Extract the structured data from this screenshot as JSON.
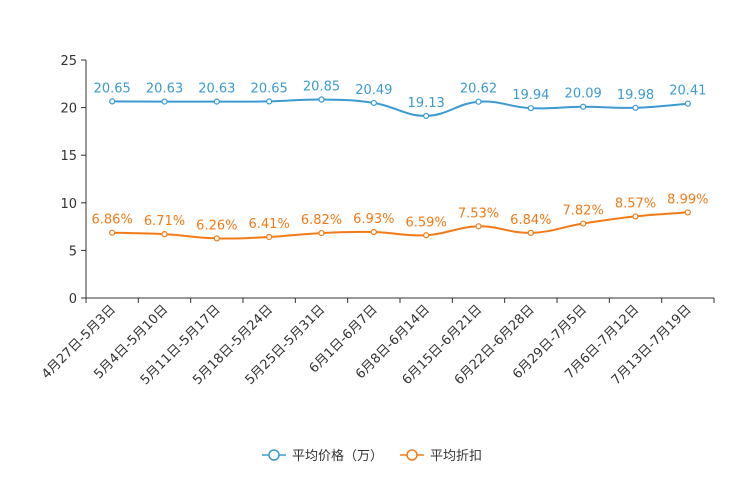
{
  "chart_data": {
    "type": "line",
    "title": "",
    "xlabel": "",
    "ylabel": "",
    "ylim": [
      0,
      25
    ],
    "yticks": [
      0,
      5,
      10,
      15,
      20,
      25
    ],
    "grid": false,
    "legend_position": "bottom-center",
    "categories": [
      "4月27日-5月3日",
      "5月4日-5月10日",
      "5月11日-5月17日",
      "5月18日-5月24日",
      "5月25日-5月31日",
      "6月1日-6月7日",
      "6月8日-6月14日",
      "6月15日-6月21日",
      "6月22日-6月28日",
      "6月29日-7月5日",
      "7月6日-7月12日",
      "7月13日-7月19日"
    ],
    "series": [
      {
        "name": "平均价格（万）",
        "color": "#3b9bd1",
        "values": [
          20.65,
          20.63,
          20.63,
          20.65,
          20.85,
          20.49,
          19.13,
          20.62,
          19.94,
          20.09,
          19.98,
          20.41
        ],
        "labels": [
          "20.65",
          "20.63",
          "20.63",
          "20.65",
          "20.85",
          "20.49",
          "19.13",
          "20.62",
          "19.94",
          "20.09",
          "19.98",
          "20.41"
        ]
      },
      {
        "name": "平均折扣",
        "color": "#f27b18",
        "values": [
          6.86,
          6.71,
          6.26,
          6.41,
          6.82,
          6.93,
          6.59,
          7.53,
          6.84,
          7.82,
          8.57,
          8.99
        ],
        "labels": [
          "6.86%",
          "6.71%",
          "6.26%",
          "6.41%",
          "6.82%",
          "6.93%",
          "6.59%",
          "7.53%",
          "6.84%",
          "7.82%",
          "8.57%",
          "8.99%"
        ]
      }
    ]
  }
}
